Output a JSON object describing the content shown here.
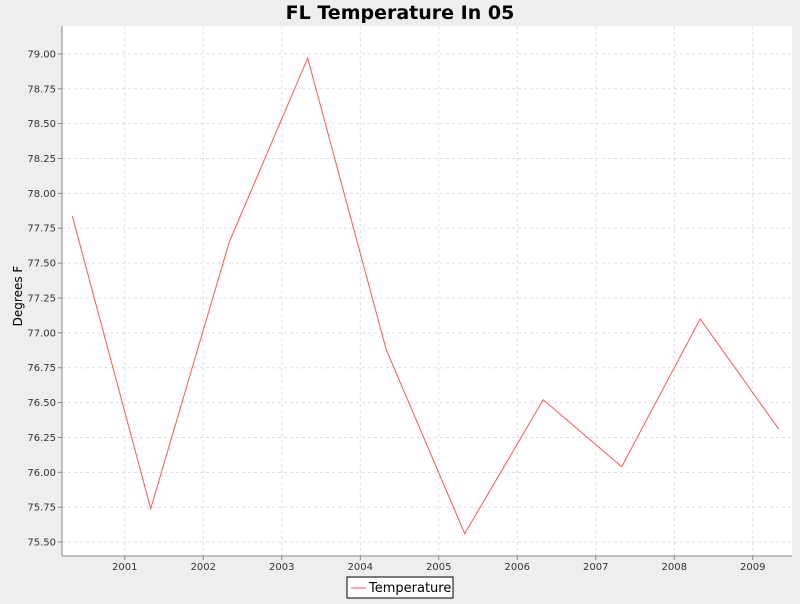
{
  "chart_data": {
    "type": "line",
    "title": "FL Temperature In 05",
    "xlabel": "",
    "ylabel": "Degrees F",
    "x_ticks": [
      "2001",
      "2002",
      "2003",
      "2004",
      "2005",
      "2006",
      "2007",
      "2008",
      "2009"
    ],
    "y_ticks": [
      "75.50",
      "75.75",
      "76.00",
      "76.25",
      "76.50",
      "76.75",
      "77.00",
      "77.25",
      "77.50",
      "77.75",
      "78.00",
      "78.25",
      "78.50",
      "78.75",
      "79.00"
    ],
    "xlim": [
      2000.2,
      2009.5
    ],
    "ylim": [
      75.4,
      79.2
    ],
    "grid": true,
    "legend_position": "bottom",
    "series": [
      {
        "name": "Temperature",
        "color": "#ff5555",
        "x": [
          2000.33,
          2001.33,
          2002.33,
          2003.33,
          2004.33,
          2005.33,
          2006.33,
          2007.33,
          2008.33,
          2009.33
        ],
        "y": [
          77.84,
          75.74,
          77.65,
          78.97,
          76.88,
          75.56,
          76.52,
          76.04,
          77.1,
          76.31
        ]
      }
    ]
  },
  "colors": {
    "background": "#eeeeee",
    "plot_background": "#ffffff",
    "grid": "#dddddd",
    "axis": "#888888"
  }
}
